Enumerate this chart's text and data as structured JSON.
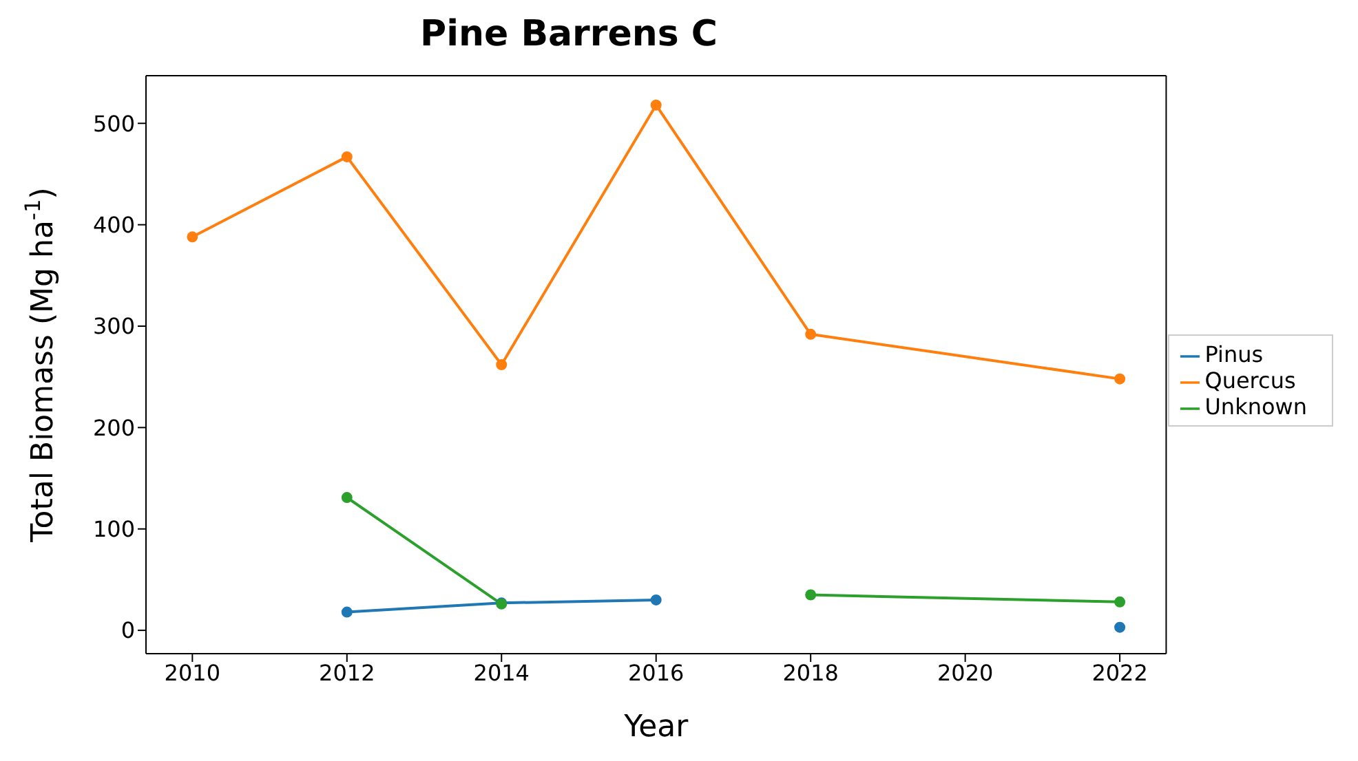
{
  "chart_data": {
    "type": "line",
    "title": "Pine Barrens C",
    "xlabel": "Year",
    "ylabel": "Total Biomass (Mg ha$^{-1}$)",
    "x": [
      2010,
      2012,
      2014,
      2016,
      2018,
      2022
    ],
    "series": [
      {
        "name": "Pinus",
        "color": "#1f77b4",
        "values": [
          null,
          18,
          27,
          30,
          null,
          3
        ]
      },
      {
        "name": "Quercus",
        "color": "#ff7f0e",
        "values": [
          388,
          467,
          262,
          518,
          292,
          248
        ]
      },
      {
        "name": "Unknown",
        "color": "#2ca02c",
        "values": [
          null,
          131,
          26,
          null,
          35,
          28
        ]
      }
    ],
    "xlim": [
      2009.4,
      2022.6
    ],
    "xticks": [
      2010,
      2012,
      2014,
      2016,
      2018,
      2020,
      2022
    ],
    "ylim": [
      -23,
      547
    ],
    "yticks": [
      0,
      100,
      200,
      300,
      400,
      500
    ],
    "legend": "right",
    "marker": "circle",
    "line_style": "solid",
    "grid": false
  }
}
